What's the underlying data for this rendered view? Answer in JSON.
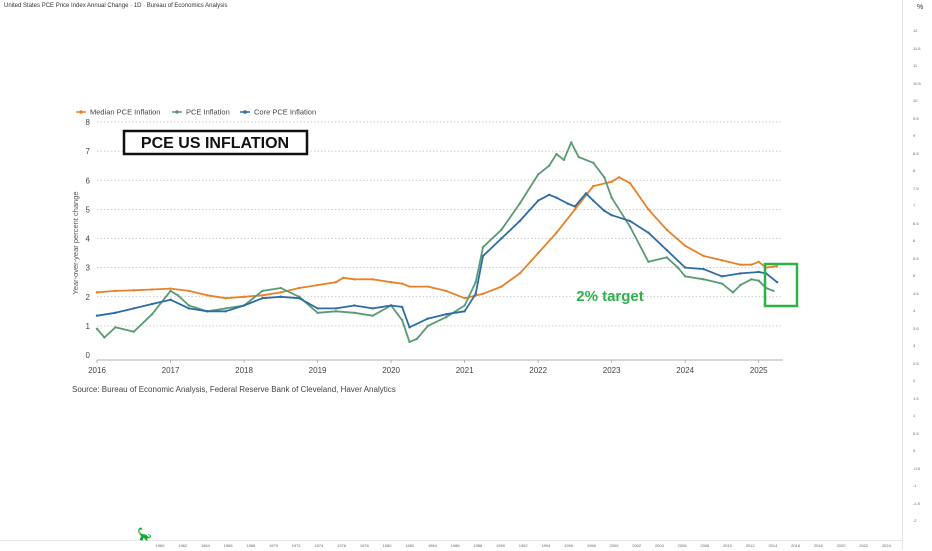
{
  "header": {
    "title": "United States PCE Price Index Annual Change · 1D · Bureau of Economics Analysis"
  },
  "right_axis": {
    "unit_label": "%",
    "ticks": [
      "12",
      "11.5",
      "11",
      "10.5",
      "10",
      "9.5",
      "9",
      "8.5",
      "8",
      "7.5",
      "7",
      "6.5",
      "6",
      "5.5",
      "5",
      "4.5",
      "4",
      "3.5",
      "3",
      "2.5",
      "2",
      "1.5",
      "1",
      "0.5",
      "0",
      "-0.5",
      "-1",
      "-1.5",
      "-2"
    ]
  },
  "bottom_axis": {
    "years": [
      "1960",
      "1962",
      "1964",
      "1966",
      "1968",
      "1970",
      "1972",
      "1974",
      "1976",
      "1978",
      "1980",
      "1982",
      "1984",
      "1986",
      "1988",
      "1990",
      "1992",
      "1994",
      "1996",
      "1998",
      "2000",
      "2002",
      "2004",
      "2006",
      "2008",
      "2010",
      "2012",
      "2014",
      "2016",
      "2018",
      "2020",
      "2022",
      "2024"
    ]
  },
  "annotation": {
    "title_box": "PCE US INFLATION",
    "target_label": "2% target",
    "target_color": "#2db24a"
  },
  "source": "Source: Bureau of Economic Analysis, Federal Reserve Bank of Cleveland, Haver Analytics",
  "chart_data": {
    "type": "line",
    "title": "",
    "xlabel": "",
    "ylabel": "Year-over-year percent change",
    "xlim": [
      2016.0,
      2025.33
    ],
    "ylim": [
      0,
      8
    ],
    "yticks": [
      0,
      1,
      2,
      3,
      4,
      5,
      6,
      7,
      8
    ],
    "xticks": [
      "2016",
      "2017",
      "2018",
      "2019",
      "2020",
      "2021",
      "2022",
      "2023",
      "2024",
      "2025"
    ],
    "grid": "horizontal-dotted",
    "legend_position": "top-left",
    "series": [
      {
        "name": "Median PCE Inflation",
        "color": "#e8822a",
        "points": [
          [
            2016.0,
            2.15
          ],
          [
            2016.25,
            2.2
          ],
          [
            2016.5,
            2.22
          ],
          [
            2016.75,
            2.25
          ],
          [
            2017.0,
            2.28
          ],
          [
            2017.25,
            2.2
          ],
          [
            2017.5,
            2.05
          ],
          [
            2017.75,
            1.95
          ],
          [
            2018.0,
            2.0
          ],
          [
            2018.25,
            2.05
          ],
          [
            2018.5,
            2.15
          ],
          [
            2018.75,
            2.3
          ],
          [
            2019.0,
            2.4
          ],
          [
            2019.25,
            2.5
          ],
          [
            2019.35,
            2.65
          ],
          [
            2019.5,
            2.6
          ],
          [
            2019.75,
            2.6
          ],
          [
            2020.0,
            2.5
          ],
          [
            2020.15,
            2.45
          ],
          [
            2020.25,
            2.35
          ],
          [
            2020.5,
            2.35
          ],
          [
            2020.75,
            2.2
          ],
          [
            2021.0,
            1.95
          ],
          [
            2021.25,
            2.1
          ],
          [
            2021.5,
            2.35
          ],
          [
            2021.75,
            2.8
          ],
          [
            2022.0,
            3.5
          ],
          [
            2022.25,
            4.2
          ],
          [
            2022.5,
            5.0
          ],
          [
            2022.75,
            5.8
          ],
          [
            2023.0,
            5.95
          ],
          [
            2023.1,
            6.1
          ],
          [
            2023.25,
            5.9
          ],
          [
            2023.5,
            5.0
          ],
          [
            2023.75,
            4.3
          ],
          [
            2024.0,
            3.75
          ],
          [
            2024.25,
            3.4
          ],
          [
            2024.5,
            3.25
          ],
          [
            2024.75,
            3.1
          ],
          [
            2024.9,
            3.1
          ],
          [
            2025.0,
            3.2
          ],
          [
            2025.1,
            3.0
          ],
          [
            2025.25,
            3.05
          ]
        ]
      },
      {
        "name": "PCE Inflation",
        "color": "#5a9b74",
        "points": [
          [
            2016.0,
            0.9
          ],
          [
            2016.1,
            0.6
          ],
          [
            2016.25,
            0.95
          ],
          [
            2016.5,
            0.8
          ],
          [
            2016.75,
            1.4
          ],
          [
            2017.0,
            2.2
          ],
          [
            2017.1,
            2.05
          ],
          [
            2017.25,
            1.7
          ],
          [
            2017.5,
            1.5
          ],
          [
            2017.75,
            1.6
          ],
          [
            2018.0,
            1.7
          ],
          [
            2018.25,
            2.2
          ],
          [
            2018.5,
            2.3
          ],
          [
            2018.75,
            2.0
          ],
          [
            2019.0,
            1.45
          ],
          [
            2019.25,
            1.5
          ],
          [
            2019.5,
            1.45
          ],
          [
            2019.75,
            1.35
          ],
          [
            2020.0,
            1.7
          ],
          [
            2020.15,
            1.2
          ],
          [
            2020.25,
            0.45
          ],
          [
            2020.35,
            0.55
          ],
          [
            2020.5,
            1.0
          ],
          [
            2020.75,
            1.3
          ],
          [
            2021.0,
            1.7
          ],
          [
            2021.15,
            2.5
          ],
          [
            2021.25,
            3.7
          ],
          [
            2021.5,
            4.3
          ],
          [
            2021.75,
            5.2
          ],
          [
            2022.0,
            6.2
          ],
          [
            2022.15,
            6.5
          ],
          [
            2022.25,
            6.9
          ],
          [
            2022.35,
            6.7
          ],
          [
            2022.45,
            7.3
          ],
          [
            2022.55,
            6.8
          ],
          [
            2022.75,
            6.6
          ],
          [
            2022.9,
            6.1
          ],
          [
            2023.0,
            5.4
          ],
          [
            2023.25,
            4.4
          ],
          [
            2023.5,
            3.2
          ],
          [
            2023.75,
            3.35
          ],
          [
            2023.9,
            3.0
          ],
          [
            2024.0,
            2.7
          ],
          [
            2024.25,
            2.6
          ],
          [
            2024.5,
            2.45
          ],
          [
            2024.65,
            2.15
          ],
          [
            2024.75,
            2.4
          ],
          [
            2024.9,
            2.6
          ],
          [
            2025.0,
            2.55
          ],
          [
            2025.1,
            2.3
          ],
          [
            2025.2,
            2.2
          ]
        ]
      },
      {
        "name": "Core PCE Inflation",
        "color": "#2e6da4",
        "points": [
          [
            2016.0,
            1.35
          ],
          [
            2016.25,
            1.45
          ],
          [
            2016.5,
            1.6
          ],
          [
            2016.75,
            1.75
          ],
          [
            2017.0,
            1.9
          ],
          [
            2017.25,
            1.6
          ],
          [
            2017.5,
            1.5
          ],
          [
            2017.75,
            1.5
          ],
          [
            2018.0,
            1.7
          ],
          [
            2018.25,
            1.95
          ],
          [
            2018.5,
            2.0
          ],
          [
            2018.75,
            1.95
          ],
          [
            2019.0,
            1.6
          ],
          [
            2019.25,
            1.6
          ],
          [
            2019.5,
            1.7
          ],
          [
            2019.75,
            1.6
          ],
          [
            2020.0,
            1.7
          ],
          [
            2020.15,
            1.65
          ],
          [
            2020.25,
            0.95
          ],
          [
            2020.5,
            1.25
          ],
          [
            2020.75,
            1.4
          ],
          [
            2021.0,
            1.5
          ],
          [
            2021.15,
            2.1
          ],
          [
            2021.25,
            3.4
          ],
          [
            2021.5,
            4.0
          ],
          [
            2021.75,
            4.6
          ],
          [
            2022.0,
            5.3
          ],
          [
            2022.15,
            5.5
          ],
          [
            2022.25,
            5.4
          ],
          [
            2022.4,
            5.2
          ],
          [
            2022.5,
            5.1
          ],
          [
            2022.65,
            5.55
          ],
          [
            2022.75,
            5.3
          ],
          [
            2022.9,
            4.95
          ],
          [
            2023.0,
            4.8
          ],
          [
            2023.25,
            4.6
          ],
          [
            2023.5,
            4.2
          ],
          [
            2023.75,
            3.6
          ],
          [
            2024.0,
            3.0
          ],
          [
            2024.25,
            2.95
          ],
          [
            2024.5,
            2.7
          ],
          [
            2024.75,
            2.8
          ],
          [
            2025.0,
            2.85
          ],
          [
            2025.1,
            2.8
          ],
          [
            2025.25,
            2.5
          ]
        ]
      }
    ]
  }
}
